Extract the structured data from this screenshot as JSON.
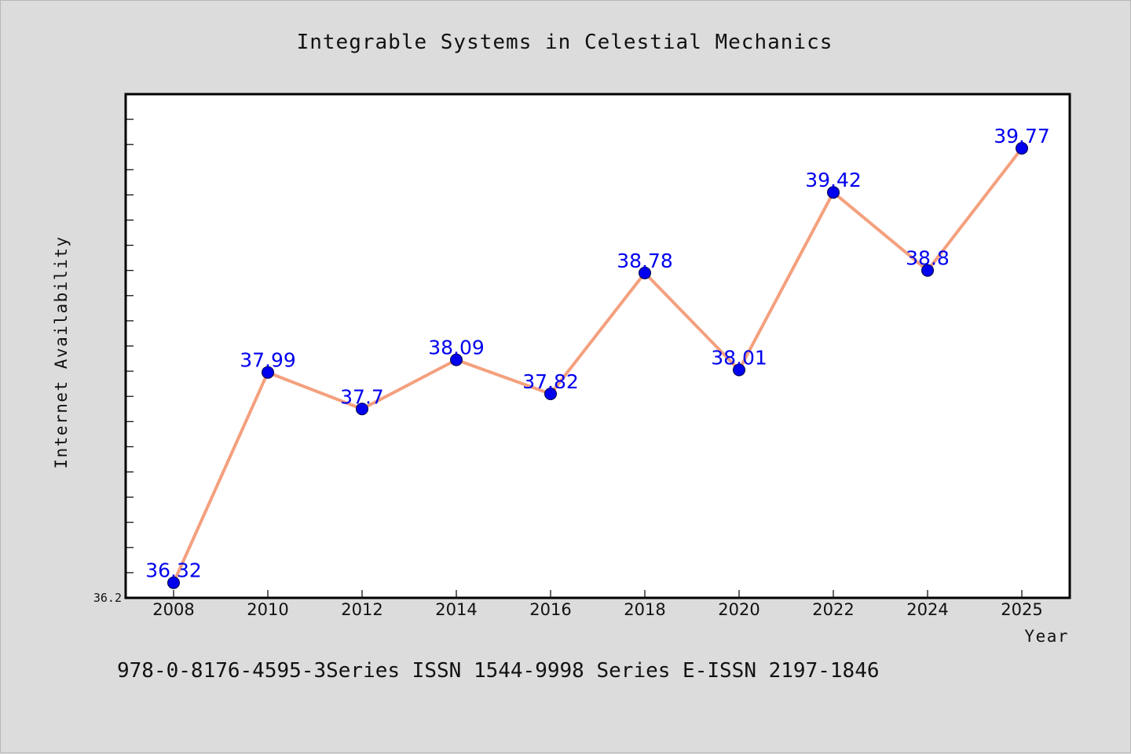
{
  "chart_data": {
    "type": "line",
    "title": "Integrable Systems in Celestial Mechanics",
    "xlabel": "Year",
    "ylabel": "Internet Availability",
    "x": [
      "2008",
      "2010",
      "2012",
      "2014",
      "2016",
      "2018",
      "2020",
      "2022",
      "2024",
      "2025"
    ],
    "series": [
      {
        "values": [
          36.32,
          37.99,
          37.7,
          38.09,
          37.82,
          38.78,
          38.01,
          39.42,
          38.8,
          39.77
        ],
        "data_labels": [
          "36.32",
          "37.99",
          "37.7",
          "38.09",
          "37.82",
          "38.78",
          "38.01",
          "39.42",
          "38.8",
          "39.77"
        ]
      }
    ],
    "ylim": [
      36.2,
      40.2
    ],
    "y_tick_label": "36.2",
    "grid": false,
    "legend": "none",
    "colors": {
      "line": "#f4a07e",
      "marker": "#0000ee",
      "data_label": "#0000ee",
      "background": "#dcdcdc",
      "plot_area": "#ffffff"
    }
  },
  "footer": "978-0-8176-4595-3Series ISSN 1544-9998 Series E-ISSN 2197-1846"
}
